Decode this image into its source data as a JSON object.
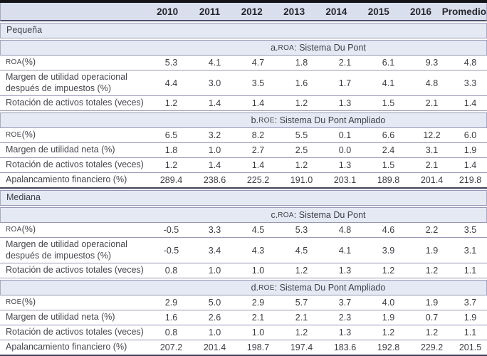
{
  "table": {
    "columns": [
      "2010",
      "2011",
      "2012",
      "2013",
      "2014",
      "2015",
      "2016",
      "Promedio"
    ],
    "rows": [
      {
        "type": "group",
        "label": "Pequeña"
      },
      {
        "type": "section",
        "prefix": "a. ",
        "acronym": "ROA",
        "rest": ": Sistema Du Pont"
      },
      {
        "type": "data",
        "acronym": "ROA",
        "rest": " (%)",
        "values": [
          "5.3",
          "4.1",
          "4.7",
          "1.8",
          "2.1",
          "6.1",
          "9.3",
          "4.8"
        ]
      },
      {
        "type": "data",
        "label": "Margen de utilidad operacional después de impuestos (%)",
        "values": [
          "4.4",
          "3.0",
          "3.5",
          "1.6",
          "1.7",
          "4.1",
          "4.8",
          "3.3"
        ]
      },
      {
        "type": "data",
        "label": "Rotación de activos totales (veces)",
        "values": [
          "1.2",
          "1.4",
          "1.4",
          "1.2",
          "1.3",
          "1.5",
          "2.1",
          "1.4"
        ]
      },
      {
        "type": "section",
        "prefix": "b. ",
        "acronym": "ROE",
        "rest": ": Sistema Du Pont Ampliado"
      },
      {
        "type": "data",
        "acronym": "ROE",
        "rest": " (%)",
        "values": [
          "6.5",
          "3.2",
          "8.2",
          "5.5",
          "0.1",
          "6.6",
          "12.2",
          "6.0"
        ]
      },
      {
        "type": "data",
        "label": "Margen de utilidad neta (%)",
        "values": [
          "1.8",
          "1.0",
          "2.7",
          "2.5",
          "0.0",
          "2.4",
          "3.1",
          "1.9"
        ]
      },
      {
        "type": "data",
        "label": "Rotación de activos totales (veces)",
        "values": [
          "1.2",
          "1.4",
          "1.4",
          "1.2",
          "1.3",
          "1.5",
          "2.1",
          "1.4"
        ]
      },
      {
        "type": "data",
        "label": "Apalancamiento financiero (%)",
        "values": [
          "289.4",
          "238.6",
          "225.2",
          "191.0",
          "203.1",
          "189.8",
          "201.4",
          "219.8"
        ],
        "thick_bottom": true
      },
      {
        "type": "group",
        "label": "Mediana"
      },
      {
        "type": "section",
        "prefix": "c. ",
        "acronym": "ROA",
        "rest": ": Sistema Du Pont"
      },
      {
        "type": "data",
        "acronym": "ROA",
        "rest": " (%)",
        "values": [
          "-0.5",
          "3.3",
          "4.5",
          "5.3",
          "4.8",
          "4.6",
          "2.2",
          "3.5"
        ]
      },
      {
        "type": "data",
        "label": "Margen de utilidad operacional después de impuestos (%)",
        "values": [
          "-0.5",
          "3.4",
          "4.3",
          "4.5",
          "4.1",
          "3.9",
          "1.9",
          "3.1"
        ]
      },
      {
        "type": "data",
        "label": "Rotación de activos totales (veces)",
        "values": [
          "0.8",
          "1.0",
          "1.0",
          "1.2",
          "1.3",
          "1.2",
          "1.2",
          "1.1"
        ]
      },
      {
        "type": "section",
        "prefix": "d. ",
        "acronym": "ROE",
        "rest": ": Sistema Du Pont Ampliado"
      },
      {
        "type": "data",
        "acronym": "ROE",
        "rest": " (%)",
        "values": [
          "2.9",
          "5.0",
          "2.9",
          "5.7",
          "3.7",
          "4.0",
          "1.9",
          "3.7"
        ]
      },
      {
        "type": "data",
        "label": "Margen de utilidad neta (%)",
        "values": [
          "1.6",
          "2.6",
          "2.1",
          "2.1",
          "2.3",
          "1.9",
          "0.7",
          "1.9"
        ]
      },
      {
        "type": "data",
        "label": "Rotación de activos totales (veces)",
        "values": [
          "0.8",
          "1.0",
          "1.0",
          "1.2",
          "1.3",
          "1.2",
          "1.2",
          "1.1"
        ]
      },
      {
        "type": "data",
        "label": "Apalancamiento financiero (%)",
        "values": [
          "207.2",
          "201.4",
          "198.7",
          "197.4",
          "183.6",
          "192.8",
          "229.2",
          "201.5"
        ],
        "thick_bottom": true
      }
    ],
    "colors": {
      "header_bg": "#d9dfec",
      "band_bg": "#e4e9f3",
      "thin_line": "#9897b6",
      "thick_line": "#141418",
      "medium_line": "#4e4e6a",
      "text": "#3f3f48"
    }
  }
}
